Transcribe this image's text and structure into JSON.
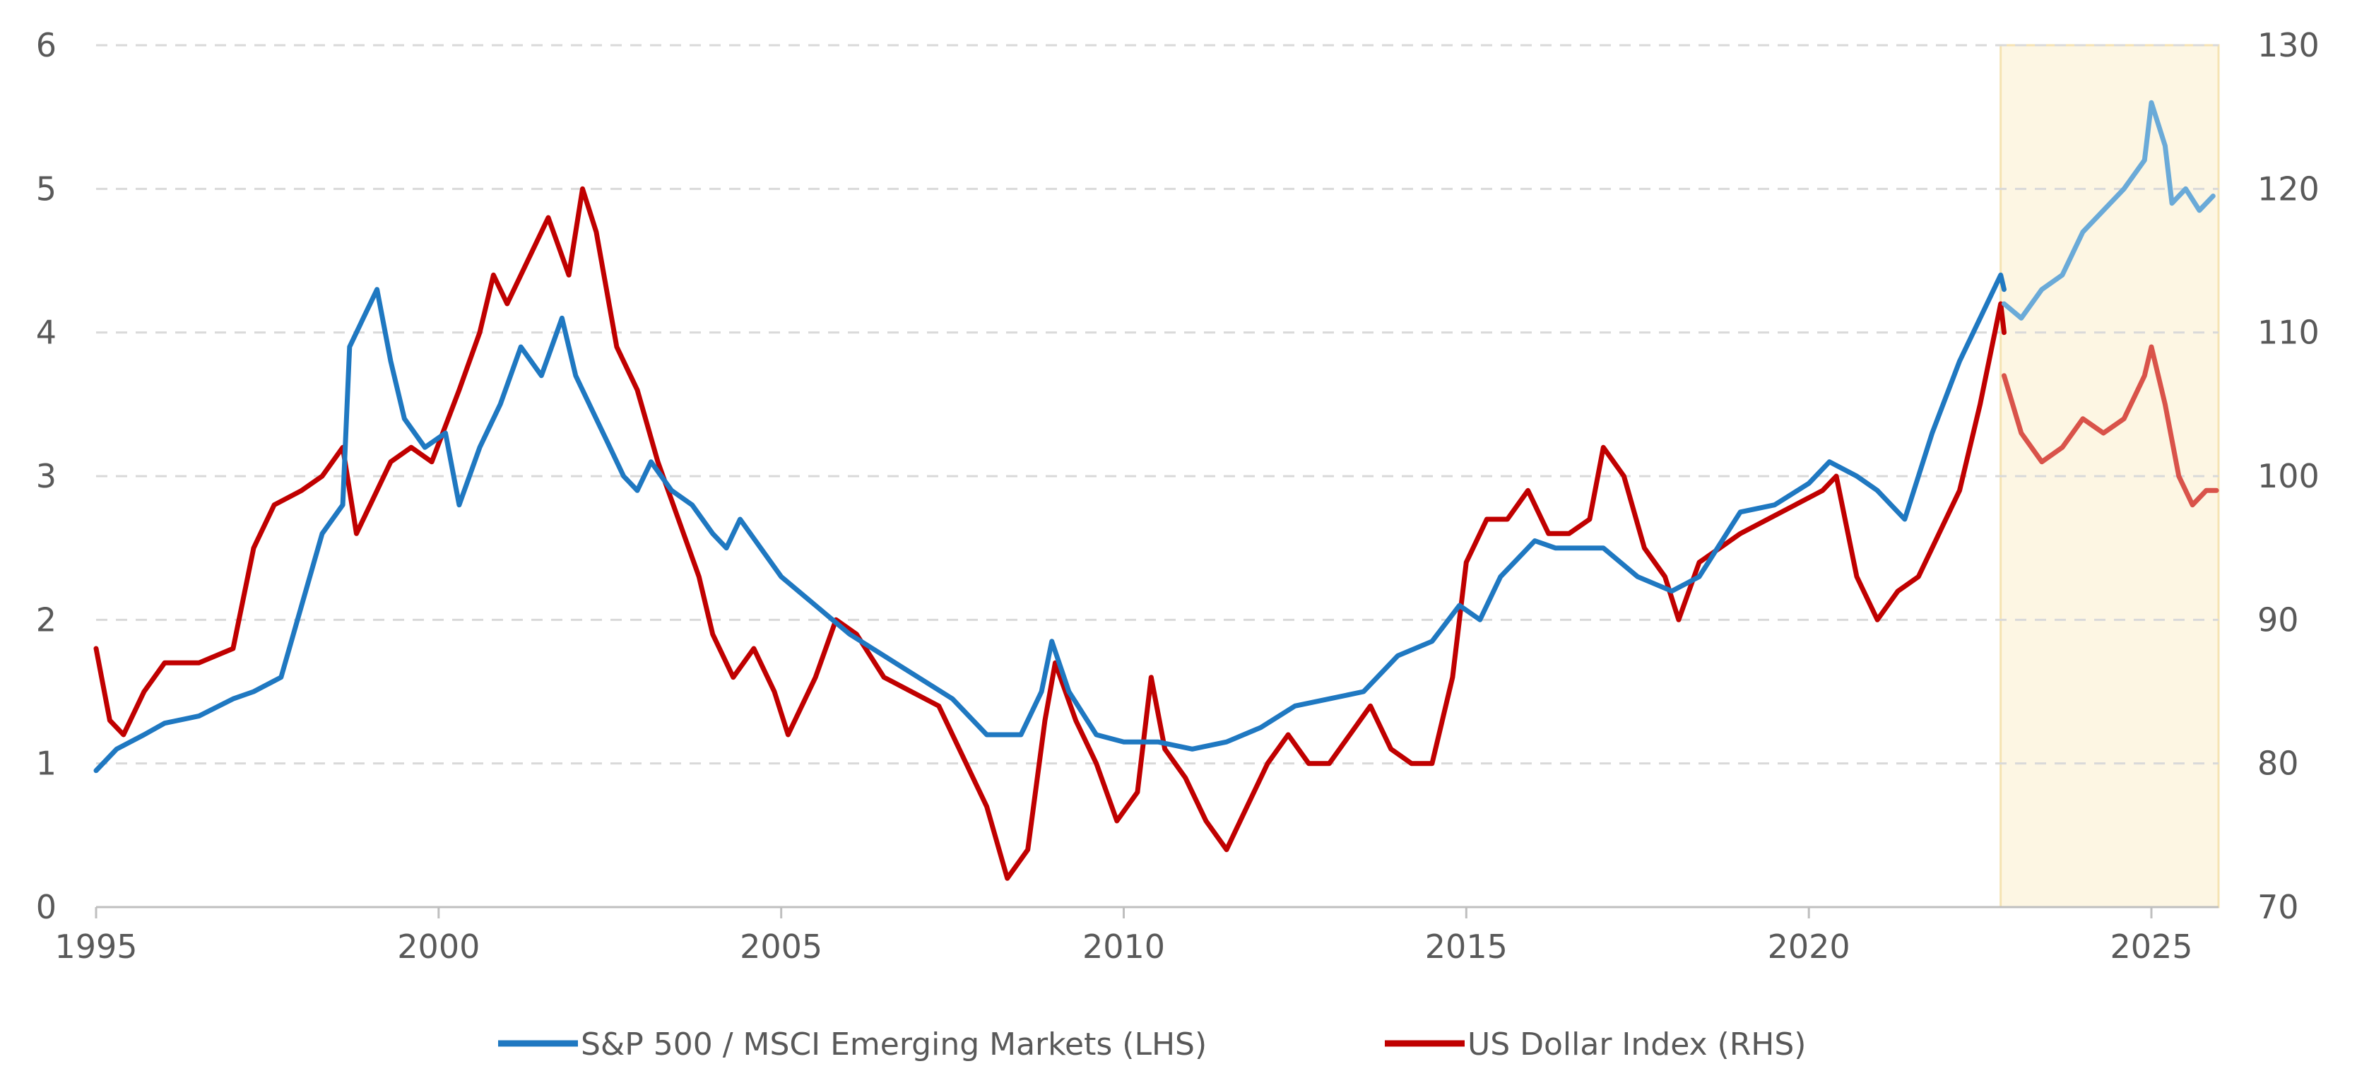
{
  "chart_data": {
    "type": "line",
    "title": "",
    "xlabel": "",
    "ylabel_left": "",
    "ylabel_right": "",
    "x_range": [
      1995,
      2026
    ],
    "x_ticks": [
      "1995",
      "2000",
      "2005",
      "2010",
      "2015",
      "2020",
      "2025"
    ],
    "y_left_range": [
      0,
      6
    ],
    "y_left_ticks": [
      "0",
      "1",
      "2",
      "3",
      "4",
      "5",
      "6"
    ],
    "y_right_range": [
      70,
      130
    ],
    "y_right_ticks": [
      "70",
      "80",
      "90",
      "100",
      "110",
      "120",
      "130"
    ],
    "grid": "horizontal dashed",
    "highlight_range": [
      2022.8,
      2026
    ],
    "series": [
      {
        "name": "S&P 500 / MSCI Emerging Markets (LHS)",
        "axis": "left",
        "color": "#1f78c1",
        "highlight_color": "#6aaad8",
        "points": [
          [
            1995.0,
            0.95
          ],
          [
            1995.3,
            1.1
          ],
          [
            1995.7,
            1.2
          ],
          [
            1996.0,
            1.28
          ],
          [
            1996.5,
            1.33
          ],
          [
            1997.0,
            1.45
          ],
          [
            1997.3,
            1.5
          ],
          [
            1997.7,
            1.6
          ],
          [
            1998.0,
            2.1
          ],
          [
            1998.3,
            2.6
          ],
          [
            1998.6,
            2.8
          ],
          [
            1998.7,
            3.9
          ],
          [
            1998.9,
            4.1
          ],
          [
            1999.1,
            4.3
          ],
          [
            1999.3,
            3.8
          ],
          [
            1999.5,
            3.4
          ],
          [
            1999.8,
            3.2
          ],
          [
            2000.1,
            3.3
          ],
          [
            2000.3,
            2.8
          ],
          [
            2000.6,
            3.2
          ],
          [
            2000.9,
            3.5
          ],
          [
            2001.2,
            3.9
          ],
          [
            2001.5,
            3.7
          ],
          [
            2001.8,
            4.1
          ],
          [
            2002.0,
            3.7
          ],
          [
            2002.3,
            3.4
          ],
          [
            2002.5,
            3.2
          ],
          [
            2002.7,
            3.0
          ],
          [
            2002.9,
            2.9
          ],
          [
            2003.1,
            3.1
          ],
          [
            2003.4,
            2.9
          ],
          [
            2003.7,
            2.8
          ],
          [
            2004.0,
            2.6
          ],
          [
            2004.2,
            2.5
          ],
          [
            2004.4,
            2.7
          ],
          [
            2004.7,
            2.5
          ],
          [
            2005.0,
            2.3
          ],
          [
            2005.5,
            2.1
          ],
          [
            2006.0,
            1.9
          ],
          [
            2006.5,
            1.75
          ],
          [
            2007.0,
            1.6
          ],
          [
            2007.5,
            1.45
          ],
          [
            2008.0,
            1.2
          ],
          [
            2008.5,
            1.2
          ],
          [
            2008.8,
            1.5
          ],
          [
            2008.95,
            1.85
          ],
          [
            2009.2,
            1.5
          ],
          [
            2009.6,
            1.2
          ],
          [
            2010.0,
            1.15
          ],
          [
            2010.5,
            1.15
          ],
          [
            2011.0,
            1.1
          ],
          [
            2011.5,
            1.15
          ],
          [
            2012.0,
            1.25
          ],
          [
            2012.5,
            1.4
          ],
          [
            2013.0,
            1.45
          ],
          [
            2013.5,
            1.5
          ],
          [
            2014.0,
            1.75
          ],
          [
            2014.5,
            1.85
          ],
          [
            2014.9,
            2.1
          ],
          [
            2015.2,
            2.0
          ],
          [
            2015.5,
            2.3
          ],
          [
            2016.0,
            2.55
          ],
          [
            2016.3,
            2.5
          ],
          [
            2016.7,
            2.5
          ],
          [
            2017.0,
            2.5
          ],
          [
            2017.5,
            2.3
          ],
          [
            2018.0,
            2.2
          ],
          [
            2018.4,
            2.3
          ],
          [
            2018.8,
            2.6
          ],
          [
            2019.0,
            2.75
          ],
          [
            2019.5,
            2.8
          ],
          [
            2020.0,
            2.95
          ],
          [
            2020.3,
            3.1
          ],
          [
            2020.7,
            3.0
          ],
          [
            2021.0,
            2.9
          ],
          [
            2021.4,
            2.7
          ],
          [
            2021.8,
            3.3
          ],
          [
            2022.2,
            3.8
          ],
          [
            2022.6,
            4.2
          ],
          [
            2022.8,
            4.4
          ],
          [
            2022.85,
            4.3
          ]
        ]
      },
      {
        "name": "US Dollar Index (RHS)",
        "axis": "right",
        "color": "#c00000",
        "highlight_color": "#d9534a",
        "points": [
          [
            1995.0,
            88
          ],
          [
            1995.2,
            83
          ],
          [
            1995.4,
            82
          ],
          [
            1995.7,
            85
          ],
          [
            1996.0,
            87
          ],
          [
            1996.5,
            87
          ],
          [
            1997.0,
            88
          ],
          [
            1997.3,
            95
          ],
          [
            1997.6,
            98
          ],
          [
            1998.0,
            99
          ],
          [
            1998.3,
            100
          ],
          [
            1998.6,
            102
          ],
          [
            1998.8,
            96
          ],
          [
            1999.0,
            98
          ],
          [
            1999.3,
            101
          ],
          [
            1999.6,
            102
          ],
          [
            1999.9,
            101
          ],
          [
            2000.3,
            106
          ],
          [
            2000.6,
            110
          ],
          [
            2000.8,
            114
          ],
          [
            2001.0,
            112
          ],
          [
            2001.3,
            115
          ],
          [
            2001.6,
            118
          ],
          [
            2001.9,
            114
          ],
          [
            2002.1,
            120
          ],
          [
            2002.3,
            117
          ],
          [
            2002.6,
            109
          ],
          [
            2002.9,
            106
          ],
          [
            2003.2,
            101
          ],
          [
            2003.5,
            97
          ],
          [
            2003.8,
            93
          ],
          [
            2004.0,
            89
          ],
          [
            2004.3,
            86
          ],
          [
            2004.6,
            88
          ],
          [
            2004.9,
            85
          ],
          [
            2005.1,
            82
          ],
          [
            2005.5,
            86
          ],
          [
            2005.8,
            90
          ],
          [
            2006.1,
            89
          ],
          [
            2006.5,
            86
          ],
          [
            2006.9,
            85
          ],
          [
            2007.3,
            84
          ],
          [
            2007.7,
            80
          ],
          [
            2008.0,
            77
          ],
          [
            2008.3,
            72
          ],
          [
            2008.6,
            74
          ],
          [
            2008.85,
            83
          ],
          [
            2009.0,
            87
          ],
          [
            2009.3,
            83
          ],
          [
            2009.6,
            80
          ],
          [
            2009.9,
            76
          ],
          [
            2010.2,
            78
          ],
          [
            2010.4,
            86
          ],
          [
            2010.6,
            81
          ],
          [
            2010.9,
            79
          ],
          [
            2011.2,
            76
          ],
          [
            2011.5,
            74
          ],
          [
            2011.8,
            77
          ],
          [
            2012.1,
            80
          ],
          [
            2012.4,
            82
          ],
          [
            2012.7,
            80
          ],
          [
            2013.0,
            80
          ],
          [
            2013.3,
            82
          ],
          [
            2013.6,
            84
          ],
          [
            2013.9,
            81
          ],
          [
            2014.2,
            80
          ],
          [
            2014.5,
            80
          ],
          [
            2014.8,
            86
          ],
          [
            2015.0,
            94
          ],
          [
            2015.3,
            97
          ],
          [
            2015.6,
            97
          ],
          [
            2015.9,
            99
          ],
          [
            2016.2,
            96
          ],
          [
            2016.5,
            96
          ],
          [
            2016.8,
            97
          ],
          [
            2017.0,
            102
          ],
          [
            2017.3,
            100
          ],
          [
            2017.6,
            95
          ],
          [
            2017.9,
            93
          ],
          [
            2018.1,
            90
          ],
          [
            2018.4,
            94
          ],
          [
            2018.7,
            95
          ],
          [
            2019.0,
            96
          ],
          [
            2019.4,
            97
          ],
          [
            2019.8,
            98
          ],
          [
            2020.2,
            99
          ],
          [
            2020.4,
            100
          ],
          [
            2020.7,
            93
          ],
          [
            2021.0,
            90
          ],
          [
            2021.3,
            92
          ],
          [
            2021.6,
            93
          ],
          [
            2021.9,
            96
          ],
          [
            2022.2,
            99
          ],
          [
            2022.5,
            105
          ],
          [
            2022.8,
            112
          ],
          [
            2022.85,
            110
          ]
        ]
      },
      {
        "name": "S&P 500 / MSCI Emerging Markets (LHS) highlighted",
        "axis": "left",
        "color": "#6aaad8",
        "points": [
          [
            2022.85,
            4.2
          ],
          [
            2023.1,
            4.1
          ],
          [
            2023.4,
            4.3
          ],
          [
            2023.7,
            4.4
          ],
          [
            2024.0,
            4.7
          ],
          [
            2024.3,
            4.85
          ],
          [
            2024.6,
            5.0
          ],
          [
            2024.9,
            5.2
          ],
          [
            2025.0,
            5.6
          ],
          [
            2025.2,
            5.3
          ],
          [
            2025.3,
            4.9
          ],
          [
            2025.5,
            5.0
          ],
          [
            2025.7,
            4.85
          ],
          [
            2025.9,
            4.95
          ]
        ]
      },
      {
        "name": "US Dollar Index (RHS) highlighted",
        "axis": "right",
        "color": "#d9534a",
        "points": [
          [
            2022.85,
            107
          ],
          [
            2023.1,
            103
          ],
          [
            2023.4,
            101
          ],
          [
            2023.7,
            102
          ],
          [
            2024.0,
            104
          ],
          [
            2024.3,
            103
          ],
          [
            2024.6,
            104
          ],
          [
            2024.9,
            107
          ],
          [
            2025.0,
            109
          ],
          [
            2025.2,
            105
          ],
          [
            2025.4,
            100
          ],
          [
            2025.6,
            98
          ],
          [
            2025.8,
            99
          ],
          [
            2025.95,
            99
          ]
        ]
      }
    ],
    "legend": {
      "position": "bottom-center",
      "entries": [
        "S&P 500 / MSCI Emerging Markets (LHS)",
        "US Dollar Index (RHS)"
      ]
    }
  },
  "colors": {
    "grid": "#d9d9d9",
    "axis": "#bfbfbf",
    "tick_text": "#595959",
    "highlight_fill": "#fdf6e3",
    "highlight_stroke": "#f5e3b3"
  }
}
